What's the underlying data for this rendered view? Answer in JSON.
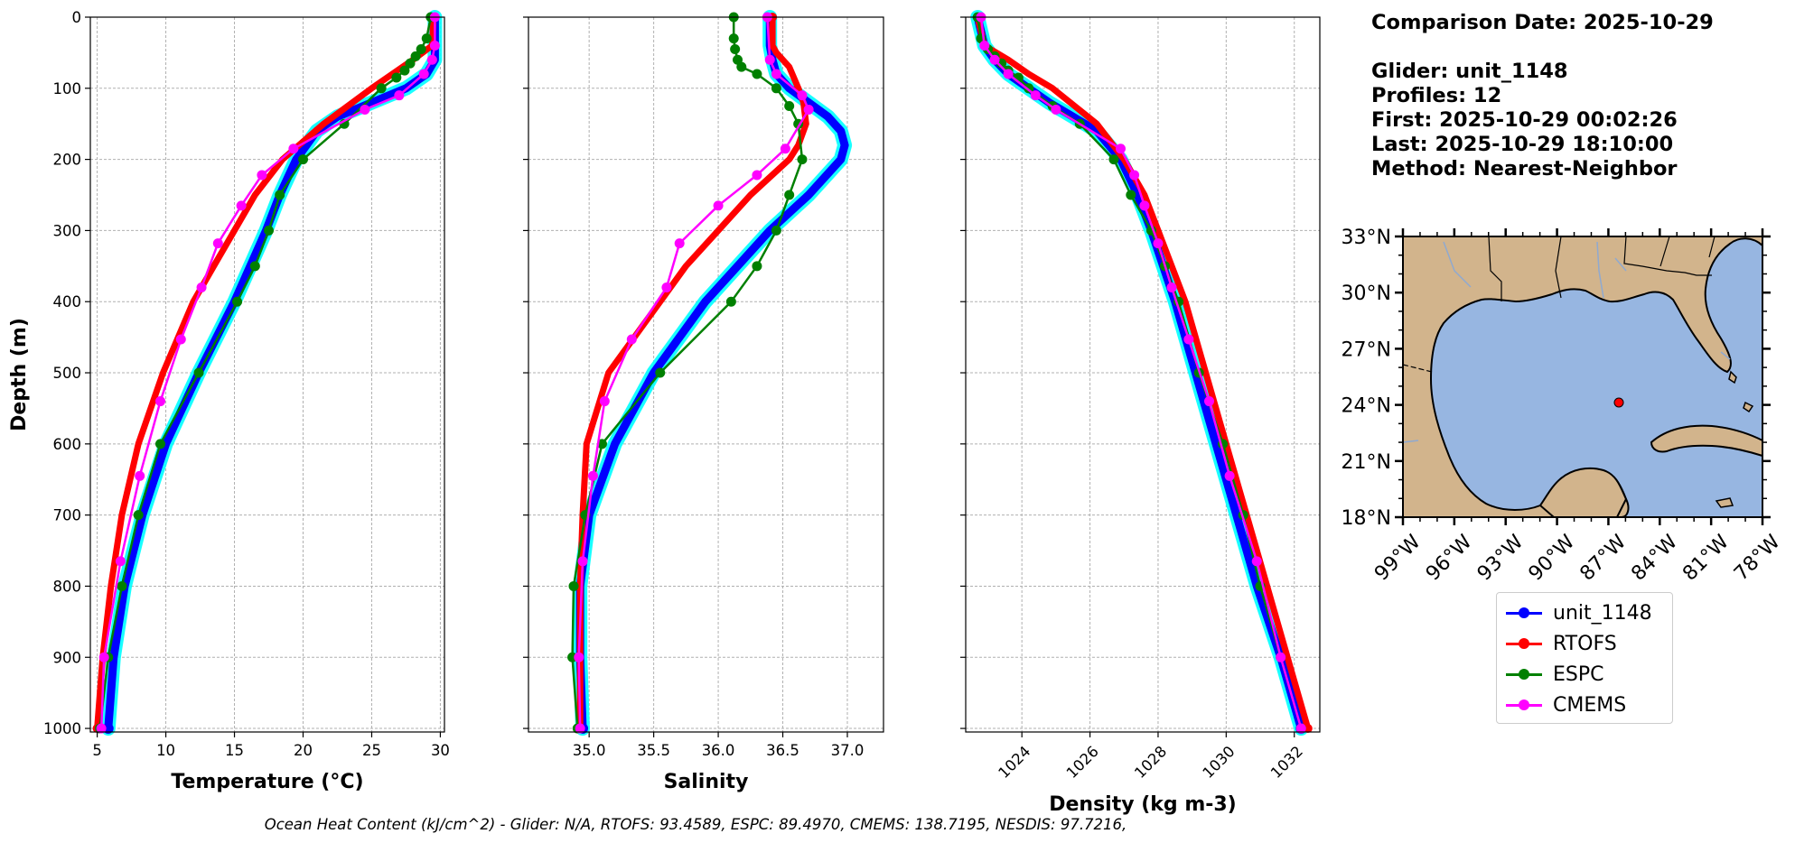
{
  "figure": {
    "info_lines": {
      "date": "Comparison Date: 2025-10-29",
      "glider": "Glider: unit_1148",
      "profiles": "Profiles: 12",
      "first": "First: 2025-10-29 00:02:26",
      "last": "Last: 2025-10-29 18:10:00",
      "method": "Method: Nearest-Neighbor"
    },
    "footer": "Ocean Heat Content (kJ/cm^2) - Glider: N/A,  RTOFS: 93.4589,  ESPC: 89.4970,  CMEMS: 138.7195,  NESDIS: 97.7216,",
    "legend": [
      {
        "name": "unit_1148",
        "color": "#0000ff"
      },
      {
        "name": "RTOFS",
        "color": "#ff0000"
      },
      {
        "name": "ESPC",
        "color": "#008000"
      },
      {
        "name": "CMEMS",
        "color": "#ff00ff"
      }
    ]
  },
  "chart_data": [
    {
      "type": "line",
      "xlabel": "Temperature (°C)",
      "ylabel": "Depth (m)",
      "xlim": [
        4.5,
        30.3
      ],
      "ylim": [
        1005,
        0
      ],
      "xticks": [
        5,
        10,
        15,
        20,
        25,
        30
      ],
      "yticks": [
        0,
        100,
        200,
        300,
        400,
        500,
        600,
        700,
        800,
        900,
        1000
      ],
      "grid": true,
      "series": [
        {
          "name": "unit_1148",
          "color": "#0000ff",
          "depth": [
            0,
            40,
            60,
            80,
            100,
            120,
            140,
            160,
            200,
            250,
            300,
            400,
            500,
            600,
            700,
            800,
            900,
            1000
          ],
          "values": [
            29.6,
            29.6,
            29.6,
            29.0,
            27.5,
            25.0,
            22.5,
            21.0,
            19.5,
            18.3,
            17.3,
            15.0,
            12.4,
            10.0,
            8.3,
            7.0,
            6.2,
            5.8
          ]
        },
        {
          "name": "RTOFS",
          "color": "#ff0000",
          "depth": [
            0,
            40,
            60,
            80,
            100,
            150,
            200,
            250,
            300,
            350,
            400,
            500,
            600,
            700,
            800,
            900,
            1000
          ],
          "values": [
            29.5,
            29.4,
            28.0,
            26.5,
            25.0,
            21.5,
            18.5,
            16.5,
            15.0,
            13.5,
            12.0,
            9.8,
            8.0,
            6.8,
            6.0,
            5.4,
            5.0
          ]
        },
        {
          "name": "ESPC",
          "color": "#008000",
          "depth": [
            0,
            30,
            45,
            55,
            65,
            75,
            85,
            100,
            150,
            200,
            250,
            300,
            350,
            400,
            500,
            600,
            700,
            800,
            900,
            1000
          ],
          "values": [
            29.3,
            29.0,
            28.6,
            28.2,
            27.8,
            27.4,
            26.8,
            25.7,
            23.0,
            20.0,
            18.3,
            17.5,
            16.5,
            15.2,
            12.4,
            9.6,
            8.0,
            6.8,
            5.8,
            5.2
          ]
        },
        {
          "name": "CMEMS",
          "color": "#ff00ff",
          "depth": [
            0,
            40,
            60,
            80,
            110,
            130,
            185,
            222,
            265,
            318,
            380,
            453,
            540,
            645,
            765,
            900,
            1000
          ],
          "values": [
            29.6,
            29.6,
            29.4,
            28.8,
            27.0,
            24.5,
            19.3,
            17.0,
            15.5,
            13.8,
            12.6,
            11.1,
            9.6,
            8.1,
            6.7,
            5.5,
            5.3
          ]
        }
      ]
    },
    {
      "type": "line",
      "xlabel": "Salinity",
      "ylabel": "",
      "xlim": [
        34.53,
        37.28
      ],
      "ylim": [
        1005,
        0
      ],
      "xticks": [
        35.0,
        35.5,
        36.0,
        36.5,
        37.0
      ],
      "yticks": [
        0,
        100,
        200,
        300,
        400,
        500,
        600,
        700,
        800,
        900,
        1000
      ],
      "grid": true,
      "series": [
        {
          "name": "unit_1148",
          "color": "#0000ff",
          "depth": [
            0,
            40,
            60,
            80,
            100,
            120,
            140,
            160,
            180,
            200,
            250,
            300,
            400,
            500,
            600,
            700,
            800,
            900,
            1000
          ],
          "values": [
            36.4,
            36.4,
            36.42,
            36.45,
            36.55,
            36.7,
            36.85,
            36.95,
            36.98,
            36.95,
            36.7,
            36.4,
            35.9,
            35.5,
            35.2,
            35.0,
            34.93,
            34.93,
            34.95
          ]
        },
        {
          "name": "RTOFS",
          "color": "#ff0000",
          "depth": [
            0,
            40,
            50,
            70,
            100,
            120,
            150,
            180,
            200,
            250,
            300,
            350,
            400,
            500,
            600,
            700,
            800,
            900,
            1000
          ],
          "values": [
            36.42,
            36.42,
            36.45,
            36.55,
            36.62,
            36.66,
            36.68,
            36.62,
            36.55,
            36.25,
            36.0,
            35.75,
            35.55,
            35.15,
            34.98,
            34.95,
            34.93,
            34.93,
            34.93
          ]
        },
        {
          "name": "ESPC",
          "color": "#008000",
          "depth": [
            0,
            30,
            45,
            60,
            70,
            80,
            100,
            125,
            150,
            200,
            250,
            300,
            350,
            400,
            500,
            600,
            700,
            800,
            900,
            1000
          ],
          "values": [
            36.12,
            36.12,
            36.13,
            36.15,
            36.18,
            36.3,
            36.45,
            36.55,
            36.62,
            36.65,
            36.55,
            36.45,
            36.3,
            36.1,
            35.55,
            35.1,
            34.97,
            34.88,
            34.87,
            34.91
          ]
        },
        {
          "name": "CMEMS",
          "color": "#ff00ff",
          "depth": [
            0,
            60,
            80,
            110,
            130,
            185,
            222,
            265,
            318,
            380,
            453,
            540,
            645,
            765,
            900,
            1000
          ],
          "values": [
            36.38,
            36.4,
            36.45,
            36.65,
            36.7,
            36.52,
            36.3,
            36.0,
            35.7,
            35.6,
            35.33,
            35.12,
            35.03,
            34.95,
            34.92,
            34.93
          ]
        }
      ]
    },
    {
      "type": "line",
      "xlabel": "Density (kg m-3)",
      "ylabel": "",
      "xlim": [
        1022.35,
        1032.75
      ],
      "ylim": [
        1005,
        0
      ],
      "xticks": [
        1024,
        1026,
        1028,
        1030,
        1032
      ],
      "yticks": [
        0,
        100,
        200,
        300,
        400,
        500,
        600,
        700,
        800,
        900,
        1000
      ],
      "grid": true,
      "series": [
        {
          "name": "unit_1148",
          "color": "#0000ff",
          "depth": [
            0,
            40,
            60,
            80,
            100,
            120,
            140,
            160,
            200,
            250,
            300,
            400,
            500,
            600,
            700,
            800,
            900,
            1000
          ],
          "values": [
            1022.7,
            1022.9,
            1023.2,
            1023.6,
            1024.2,
            1024.8,
            1025.5,
            1026.2,
            1026.9,
            1027.4,
            1027.8,
            1028.5,
            1029.1,
            1029.7,
            1030.3,
            1030.9,
            1031.6,
            1032.2
          ]
        },
        {
          "name": "RTOFS",
          "color": "#ff0000",
          "depth": [
            0,
            40,
            60,
            80,
            100,
            150,
            200,
            250,
            300,
            400,
            500,
            600,
            700,
            800,
            900,
            1000
          ],
          "values": [
            1022.7,
            1022.9,
            1023.6,
            1024.2,
            1024.9,
            1026.2,
            1027.0,
            1027.6,
            1028.0,
            1028.8,
            1029.4,
            1030.0,
            1030.6,
            1031.2,
            1031.8,
            1032.4
          ]
        },
        {
          "name": "ESPC",
          "color": "#008000",
          "depth": [
            0,
            30,
            45,
            55,
            65,
            75,
            85,
            100,
            125,
            150,
            200,
            250,
            300,
            350,
            400,
            500,
            600,
            700,
            800,
            900,
            1000
          ],
          "values": [
            1022.7,
            1022.8,
            1023.0,
            1023.2,
            1023.4,
            1023.6,
            1023.9,
            1024.2,
            1024.9,
            1025.7,
            1026.7,
            1027.2,
            1027.8,
            1028.2,
            1028.6,
            1029.2,
            1029.9,
            1030.5,
            1031.0,
            1031.6,
            1032.2
          ]
        },
        {
          "name": "CMEMS",
          "color": "#ff00ff",
          "depth": [
            0,
            40,
            60,
            80,
            110,
            130,
            185,
            222,
            265,
            318,
            380,
            453,
            540,
            645,
            765,
            900,
            1000
          ],
          "values": [
            1022.8,
            1022.9,
            1023.2,
            1023.6,
            1024.4,
            1025.0,
            1026.9,
            1027.3,
            1027.6,
            1028.0,
            1028.4,
            1028.9,
            1029.5,
            1030.1,
            1030.9,
            1031.6,
            1032.2
          ]
        }
      ]
    }
  ],
  "map": {
    "lon_range": [
      -99,
      -78
    ],
    "lat_range": [
      18,
      33
    ],
    "lon_ticks": [
      "99°W",
      "96°W",
      "93°W",
      "90°W",
      "87°W",
      "84°W",
      "81°W",
      "78°W"
    ],
    "lat_ticks": [
      "33°N",
      "30°N",
      "27°N",
      "24°N",
      "21°N",
      "18°N"
    ],
    "land_color": "#d2b48c",
    "ocean_color": "#97b6e1",
    "glider_position": {
      "lon": -86.6,
      "lat": 24.2
    }
  }
}
